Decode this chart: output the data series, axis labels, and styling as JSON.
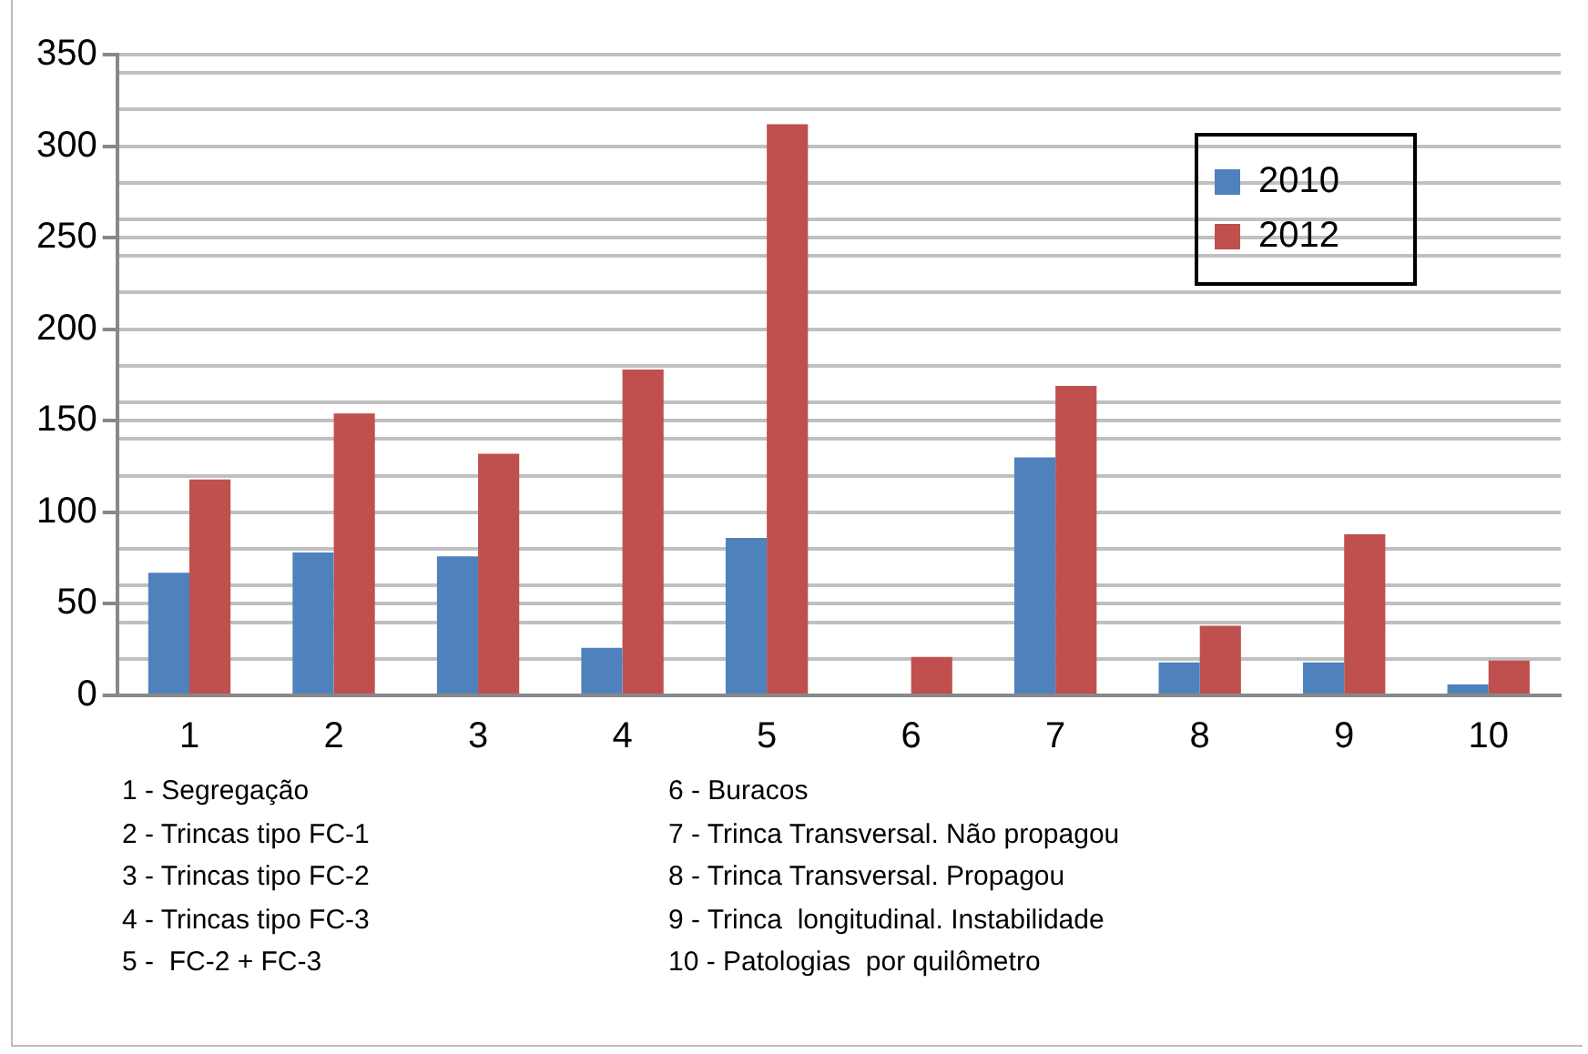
{
  "chart_data": {
    "type": "bar",
    "categories": [
      "1",
      "2",
      "3",
      "4",
      "5",
      "6",
      "7",
      "8",
      "9",
      "10"
    ],
    "series": [
      {
        "name": "2010",
        "color": "#4f81bd",
        "values": [
          67,
          78,
          76,
          26,
          86,
          1,
          130,
          18,
          18,
          6
        ]
      },
      {
        "name": "2012",
        "color": "#c0504d",
        "values": [
          118,
          154,
          132,
          178,
          312,
          21,
          169,
          38,
          88,
          19
        ]
      }
    ],
    "ylim": [
      0,
      350
    ],
    "yticks": [
      0,
      {
        "value": 20,
        "label": null
      },
      {
        "value": 40,
        "label": null
      },
      50,
      {
        "value": 60,
        "label": null
      },
      {
        "value": 80,
        "label": null
      },
      100,
      {
        "value": 120,
        "label": null
      },
      {
        "value": 140,
        "label": null
      },
      150,
      {
        "value": 160,
        "label": null
      },
      {
        "value": 180,
        "label": null
      },
      200,
      {
        "value": 220,
        "label": null
      },
      {
        "value": 240,
        "label": null
      },
      250,
      {
        "value": 260,
        "label": null
      },
      {
        "value": 280,
        "label": null
      },
      300,
      {
        "value": 320,
        "label": null
      },
      {
        "value": 340,
        "label": null
      },
      350
    ],
    "grid": "y",
    "legend": "top right",
    "annotations": [
      "1 - Segregação",
      "2 - Trincas tipo FC-1",
      "3 - Trincas tipo FC-2",
      "4 - Trincas tipo FC-3",
      "5 -  FC-2 + FC-3",
      "6 - Buracos",
      "7 - Trinca Transversal. Não propagou",
      "8 - Trinca Transversal. Propagou",
      "9 - Trinca  longitudinal. Instabilidade",
      "10 - Patologias  por quilômetro"
    ]
  }
}
